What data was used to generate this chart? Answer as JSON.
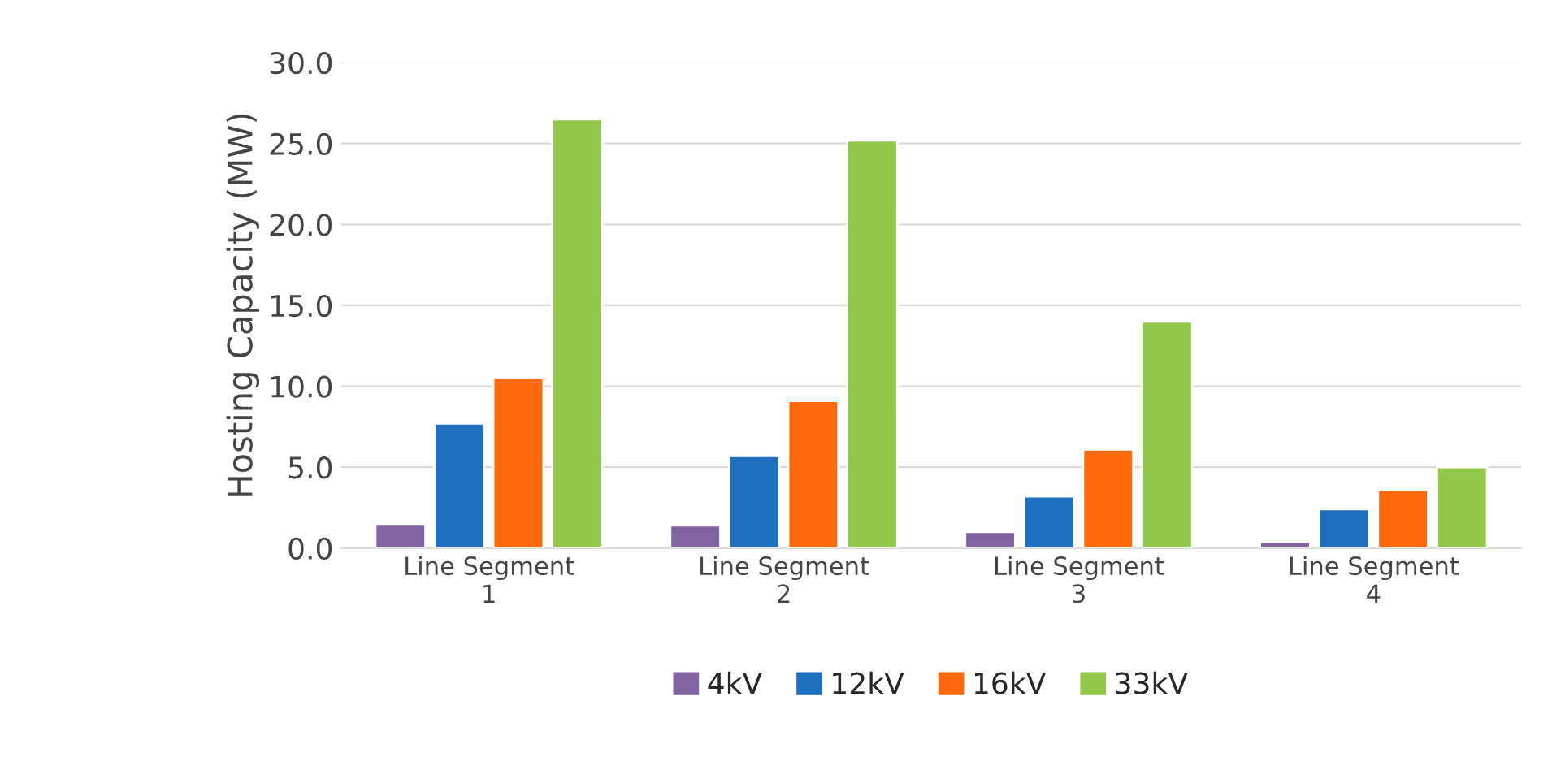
{
  "chart_data": {
    "type": "bar",
    "ylabel": "Hosting Capacity (MW)",
    "categories": [
      "Line Segment\n1",
      "Line Segment\n2",
      "Line Segment\n3",
      "Line Segment\n4"
    ],
    "series": [
      {
        "name": "4kV",
        "color": "#8064a2",
        "values": [
          1.5,
          1.4,
          1.0,
          0.4
        ]
      },
      {
        "name": "12kV",
        "color": "#1f6fbf",
        "values": [
          7.7,
          5.7,
          3.2,
          2.4
        ]
      },
      {
        "name": "16kV",
        "color": "#ff6a0d",
        "values": [
          10.5,
          9.1,
          6.1,
          3.6
        ]
      },
      {
        "name": "33kV",
        "color": "#92c84a",
        "values": [
          26.5,
          25.2,
          14.0,
          5.0
        ]
      }
    ],
    "ylim": [
      0,
      30
    ],
    "yticks": [
      {
        "value": 0,
        "label": "0.0"
      },
      {
        "value": 5,
        "label": "5.0"
      },
      {
        "value": 10,
        "label": "10.0"
      },
      {
        "value": 15,
        "label": "15.0"
      },
      {
        "value": 20,
        "label": "20.0"
      },
      {
        "value": 25,
        "label": "25.0"
      },
      {
        "value": 30,
        "label": "30.0"
      }
    ],
    "grid": "y",
    "legend": "bottom"
  }
}
